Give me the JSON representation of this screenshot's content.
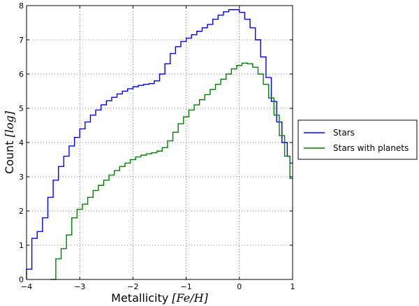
{
  "chart_data": {
    "type": "line",
    "drawstyle": "steps",
    "title": "",
    "xlabel": "Metallicity",
    "xlabel_math": "[Fe/H]",
    "ylabel": "Count",
    "ylabel_math": "[log]",
    "xlim": [
      -4,
      1
    ],
    "ylim": [
      0,
      8
    ],
    "xticks": [
      -4,
      -3,
      -2,
      -1,
      0,
      1
    ],
    "yticks": [
      0,
      1,
      2,
      3,
      4,
      5,
      6,
      7,
      8
    ],
    "xtick_labels": [
      "−4",
      "−3",
      "−2",
      "−1",
      "0",
      "1"
    ],
    "ytick_labels": [
      "0",
      "1",
      "2",
      "3",
      "4",
      "5",
      "6",
      "7",
      "8"
    ],
    "grid": true,
    "legend_position": "outside-right",
    "series": [
      {
        "name": "Stars",
        "color": "#0000ff",
        "x": [
          -4.0,
          -3.9,
          -3.8,
          -3.7,
          -3.6,
          -3.5,
          -3.4,
          -3.3,
          -3.2,
          -3.1,
          -3.0,
          -2.9,
          -2.8,
          -2.7,
          -2.6,
          -2.5,
          -2.4,
          -2.3,
          -2.2,
          -2.1,
          -2.0,
          -1.9,
          -1.8,
          -1.7,
          -1.6,
          -1.5,
          -1.4,
          -1.3,
          -1.2,
          -1.1,
          -1.0,
          -0.9,
          -0.8,
          -0.7,
          -0.6,
          -0.5,
          -0.4,
          -0.3,
          -0.2,
          -0.1,
          0.0,
          0.1,
          0.2,
          0.3,
          0.4,
          0.5,
          0.6,
          0.7,
          0.8,
          0.9,
          0.95
        ],
        "y": [
          0.3,
          1.2,
          1.4,
          1.8,
          2.4,
          2.9,
          3.3,
          3.6,
          3.9,
          4.15,
          4.4,
          4.6,
          4.8,
          4.95,
          5.1,
          5.22,
          5.32,
          5.42,
          5.5,
          5.57,
          5.63,
          5.67,
          5.7,
          5.72,
          5.8,
          6.0,
          6.3,
          6.6,
          6.8,
          6.95,
          7.05,
          7.15,
          7.25,
          7.35,
          7.45,
          7.6,
          7.72,
          7.82,
          7.88,
          7.88,
          7.8,
          7.6,
          7.35,
          7.0,
          6.5,
          5.9,
          5.2,
          4.6,
          4.0,
          3.6,
          3.4
        ]
      },
      {
        "name": "Stars with planets",
        "color": "#008000",
        "x": [
          -3.55,
          -3.45,
          -3.35,
          -3.25,
          -3.15,
          -3.05,
          -2.95,
          -2.85,
          -2.75,
          -2.65,
          -2.55,
          -2.45,
          -2.35,
          -2.25,
          -2.15,
          -2.05,
          -1.95,
          -1.85,
          -1.75,
          -1.65,
          -1.55,
          -1.45,
          -1.35,
          -1.25,
          -1.15,
          -1.05,
          -0.95,
          -0.85,
          -0.75,
          -0.65,
          -0.55,
          -0.45,
          -0.35,
          -0.25,
          -0.15,
          -0.05,
          0.05,
          0.15,
          0.25,
          0.35,
          0.45,
          0.55,
          0.65,
          0.75,
          0.85,
          0.95
        ],
        "y": [
          0.0,
          0.6,
          0.9,
          1.3,
          1.8,
          2.05,
          2.2,
          2.4,
          2.6,
          2.75,
          2.9,
          3.05,
          3.18,
          3.3,
          3.4,
          3.5,
          3.58,
          3.63,
          3.67,
          3.7,
          3.75,
          3.85,
          4.05,
          4.3,
          4.55,
          4.75,
          4.95,
          5.1,
          5.25,
          5.4,
          5.55,
          5.7,
          5.85,
          6.0,
          6.15,
          6.25,
          6.32,
          6.3,
          6.2,
          6.0,
          5.7,
          5.3,
          4.8,
          4.2,
          3.6,
          2.95
        ]
      }
    ]
  }
}
